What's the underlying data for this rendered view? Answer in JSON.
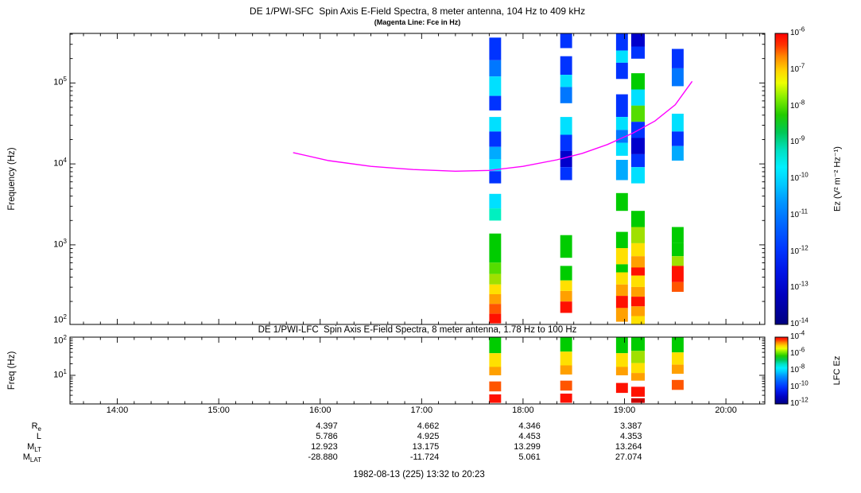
{
  "chart_data": {
    "type": "heatmap",
    "description": "DE 1 Plasma Wave Instrument two-panel spin-axis E-field spectrogram (SFC and LFC) with electron cyclotron frequency (Fce) magenta overlay; colored vertical strips are burst spectra columns on a log-frequency axis.",
    "subtitle": "(Magenta Line: Fce in Hz)",
    "footer": "1982-08-13 (225) 13:32 to 20:23",
    "x_axis": {
      "start_label": "13:32",
      "end_label": "20:23",
      "tick_labels": [
        "14:00",
        "15:00",
        "16:00",
        "17:00",
        "18:00",
        "19:00",
        "20:00"
      ],
      "tick_minutes": [
        840,
        900,
        960,
        1020,
        1080,
        1140,
        1200
      ],
      "range_minutes": [
        812,
        1223
      ]
    },
    "palette": {
      "nb": "#000090",
      "db": "#0000CC",
      "b": "#0033FF",
      "mb": "#0077FF",
      "lb": "#00AAFF",
      "c": "#00E0FF",
      "tc": "#00F0C0",
      "g": "#00CC00",
      "lg": "#55DD00",
      "yg": "#A0E000",
      "y": "#FFE000",
      "o": "#FFA000",
      "or": "#FF5500",
      "r": "#FF1100",
      "dr": "#CC0000"
    },
    "colormap_stops": [
      [
        "0%",
        "#FF0000"
      ],
      [
        "4%",
        "#FF3300"
      ],
      [
        "8%",
        "#FF8800"
      ],
      [
        "13%",
        "#FFD700"
      ],
      [
        "17%",
        "#EEFF00"
      ],
      [
        "22%",
        "#88EE00"
      ],
      [
        "28%",
        "#22CC00"
      ],
      [
        "34%",
        "#00C855"
      ],
      [
        "40%",
        "#00E0C0"
      ],
      [
        "46%",
        "#00F0FF"
      ],
      [
        "52%",
        "#00C8FF"
      ],
      [
        "58%",
        "#0096FF"
      ],
      [
        "66%",
        "#0064FF"
      ],
      [
        "74%",
        "#0037FF"
      ],
      [
        "82%",
        "#0014E6"
      ],
      [
        "90%",
        "#0000BE"
      ],
      [
        "100%",
        "#000080"
      ]
    ],
    "panels": [
      {
        "id": "sfc",
        "title": "DE 1/PWI-SFC  Spin Axis E-Field Spectra, 8 meter antenna, 104 Hz to 409 kHz",
        "ylabel": "Frequency (Hz)",
        "freq_range_hz": [
          104,
          409000
        ],
        "log_range": [
          2.017,
          5.612
        ],
        "ytick_exponents": [
          5,
          4,
          3,
          2
        ],
        "colorbar": {
          "label": "Ez (V² m⁻² Hz⁻¹)",
          "top_exp": -6,
          "bottom_exp": -14,
          "tick_exponents": [
            -6,
            -7,
            -8,
            -9,
            -10,
            -11,
            -12,
            -13,
            -14
          ]
        },
        "fce_line": {
          "color": "#FF00FF",
          "points": [
            [
              944,
              4.14
            ],
            [
              965,
              4.04
            ],
            [
              990,
              3.97
            ],
            [
              1015,
              3.93
            ],
            [
              1040,
              3.91
            ],
            [
              1060,
              3.92
            ],
            [
              1080,
              3.97
            ],
            [
              1100,
              4.05
            ],
            [
              1115,
              4.13
            ],
            [
              1130,
              4.24
            ],
            [
              1145,
              4.38
            ],
            [
              1158,
              4.53
            ],
            [
              1170,
              4.73
            ],
            [
              1180,
              5.02
            ]
          ]
        },
        "strips": [
          {
            "t": [
              1060,
              1067
            ],
            "segs": [
              [
                5.56,
                5.28,
                "b"
              ],
              [
                5.28,
                5.08,
                "mb"
              ],
              [
                5.08,
                4.84,
                "c"
              ],
              [
                4.84,
                4.66,
                "b"
              ],
              [
                4.58,
                4.4,
                "c"
              ],
              [
                4.4,
                4.21,
                "b"
              ],
              [
                4.21,
                4.06,
                "lb"
              ],
              [
                4.06,
                3.91,
                "c"
              ],
              [
                3.91,
                3.76,
                "b"
              ],
              [
                3.63,
                3.45,
                "c"
              ],
              [
                3.45,
                3.3,
                "tc"
              ],
              [
                3.14,
                2.96,
                "g"
              ],
              [
                2.96,
                2.78,
                "g"
              ],
              [
                2.78,
                2.64,
                "lg"
              ],
              [
                2.64,
                2.51,
                "yg"
              ],
              [
                2.51,
                2.39,
                "y"
              ],
              [
                2.39,
                2.27,
                "o"
              ],
              [
                2.27,
                2.15,
                "or"
              ],
              [
                2.15,
                2.03,
                "r"
              ]
            ]
          },
          {
            "t": [
              1102,
              1109
            ],
            "segs": [
              [
                5.61,
                5.43,
                "b"
              ],
              [
                5.33,
                5.1,
                "b"
              ],
              [
                5.1,
                4.95,
                "c"
              ],
              [
                4.95,
                4.75,
                "mb"
              ],
              [
                4.58,
                4.36,
                "c"
              ],
              [
                4.36,
                4.16,
                "b"
              ],
              [
                4.16,
                3.96,
                "db"
              ],
              [
                3.96,
                3.8,
                "b"
              ],
              [
                3.12,
                2.84,
                "g"
              ],
              [
                2.74,
                2.56,
                "g"
              ],
              [
                2.56,
                2.43,
                "y"
              ],
              [
                2.43,
                2.3,
                "o"
              ],
              [
                2.3,
                2.16,
                "r"
              ]
            ]
          },
          {
            "t": [
              1135,
              1142
            ],
            "segs": [
              [
                5.61,
                5.4,
                "b"
              ],
              [
                5.4,
                5.25,
                "c"
              ],
              [
                5.25,
                5.05,
                "b"
              ],
              [
                4.86,
                4.58,
                "b"
              ],
              [
                4.58,
                4.42,
                "c"
              ],
              [
                4.42,
                4.26,
                "mb"
              ],
              [
                4.26,
                4.1,
                "c"
              ],
              [
                4.05,
                3.8,
                "lb"
              ],
              [
                3.64,
                3.42,
                "g"
              ],
              [
                3.16,
                2.96,
                "g"
              ],
              [
                2.96,
                2.76,
                "y"
              ],
              [
                2.76,
                2.66,
                "g"
              ],
              [
                2.66,
                2.51,
                "y"
              ],
              [
                2.51,
                2.37,
                "o"
              ],
              [
                2.37,
                2.22,
                "r"
              ],
              [
                2.22,
                2.05,
                "o"
              ]
            ]
          },
          {
            "t": [
              1144,
              1152
            ],
            "segs": [
              [
                5.61,
                5.45,
                "db"
              ],
              [
                5.45,
                5.3,
                "b"
              ],
              [
                5.12,
                4.92,
                "g"
              ],
              [
                4.92,
                4.72,
                "c"
              ],
              [
                4.72,
                4.52,
                "lg"
              ],
              [
                4.52,
                4.32,
                "b"
              ],
              [
                4.32,
                4.12,
                "db"
              ],
              [
                4.12,
                3.96,
                "b"
              ],
              [
                3.96,
                3.76,
                "c"
              ],
              [
                3.42,
                3.22,
                "g"
              ],
              [
                3.22,
                3.02,
                "yg"
              ],
              [
                3.02,
                2.86,
                "y"
              ],
              [
                2.86,
                2.72,
                "o"
              ],
              [
                2.72,
                2.62,
                "r"
              ],
              [
                2.62,
                2.48,
                "y"
              ],
              [
                2.48,
                2.36,
                "o"
              ],
              [
                2.36,
                2.24,
                "r"
              ],
              [
                2.24,
                2.12,
                "o"
              ],
              [
                2.12,
                2.02,
                "y"
              ]
            ]
          },
          {
            "t": [
              1168,
              1175
            ],
            "segs": [
              [
                5.42,
                5.18,
                "b"
              ],
              [
                5.18,
                4.96,
                "mb"
              ],
              [
                4.62,
                4.4,
                "c"
              ],
              [
                4.4,
                4.22,
                "b"
              ],
              [
                4.22,
                4.04,
                "lb"
              ],
              [
                3.22,
                3.02,
                "g"
              ],
              [
                3.02,
                2.86,
                "g"
              ],
              [
                2.86,
                2.74,
                "yg"
              ],
              [
                2.74,
                2.54,
                "r"
              ],
              [
                2.54,
                2.42,
                "or"
              ]
            ]
          }
        ]
      },
      {
        "id": "lfc",
        "title": "DE 1/PWI-LFC  Spin Axis E-Field Spectra, 8 meter antenna, 1.78 Hz to 100 Hz",
        "ylabel": "Freq (Hz)",
        "freq_range_hz": [
          1.78,
          100
        ],
        "log_range": [
          0.25,
          2.0
        ],
        "ytick_exponents": [
          2,
          1
        ],
        "colorbar": {
          "label": "LFC Ez",
          "top_exp": -4,
          "bottom_exp": -12,
          "tick_exponents": [
            -4,
            -6,
            -8,
            -10,
            -12
          ]
        },
        "strips": [
          {
            "t": [
              1060,
              1067
            ],
            "segs": [
              [
                2.0,
                1.58,
                "g"
              ],
              [
                1.58,
                1.22,
                "y"
              ],
              [
                1.22,
                1.0,
                "o"
              ],
              [
                0.84,
                0.58,
                "or"
              ],
              [
                0.5,
                0.28,
                "r"
              ]
            ]
          },
          {
            "t": [
              1102,
              1109
            ],
            "segs": [
              [
                2.0,
                1.62,
                "g"
              ],
              [
                1.62,
                1.26,
                "y"
              ],
              [
                1.26,
                1.02,
                "o"
              ],
              [
                0.86,
                0.6,
                "or"
              ],
              [
                0.52,
                0.28,
                "r"
              ]
            ]
          },
          {
            "t": [
              1135,
              1142
            ],
            "segs": [
              [
                2.0,
                1.58,
                "g"
              ],
              [
                1.58,
                1.22,
                "y"
              ],
              [
                1.22,
                1.0,
                "o"
              ],
              [
                0.8,
                0.54,
                "r"
              ]
            ]
          },
          {
            "t": [
              1144,
              1152
            ],
            "segs": [
              [
                2.0,
                1.64,
                "g"
              ],
              [
                1.64,
                1.32,
                "yg"
              ],
              [
                1.32,
                1.06,
                "y"
              ],
              [
                1.06,
                0.86,
                "o"
              ],
              [
                0.7,
                0.44,
                "r"
              ],
              [
                0.4,
                0.28,
                "dr"
              ]
            ]
          },
          {
            "t": [
              1168,
              1175
            ],
            "segs": [
              [
                2.0,
                1.6,
                "g"
              ],
              [
                1.6,
                1.28,
                "y"
              ],
              [
                1.28,
                1.04,
                "o"
              ],
              [
                0.88,
                0.62,
                "or"
              ]
            ]
          }
        ]
      }
    ]
  },
  "ephemeris": {
    "column_minutes": [
      960,
      1020,
      1080,
      1140
    ],
    "rows": [
      {
        "label": "R_e",
        "values": [
          "4.397",
          "4.662",
          "4.346",
          "3.387"
        ]
      },
      {
        "label": "L",
        "values": [
          "5.786",
          "4.925",
          "4.453",
          "4.353"
        ]
      },
      {
        "label": "M_LT",
        "values": [
          "12.923",
          "13.175",
          "13.299",
          "13.264"
        ]
      },
      {
        "label": "M_LAT",
        "values": [
          "-28.880",
          "-11.724",
          "5.061",
          "27.074"
        ]
      }
    ]
  }
}
